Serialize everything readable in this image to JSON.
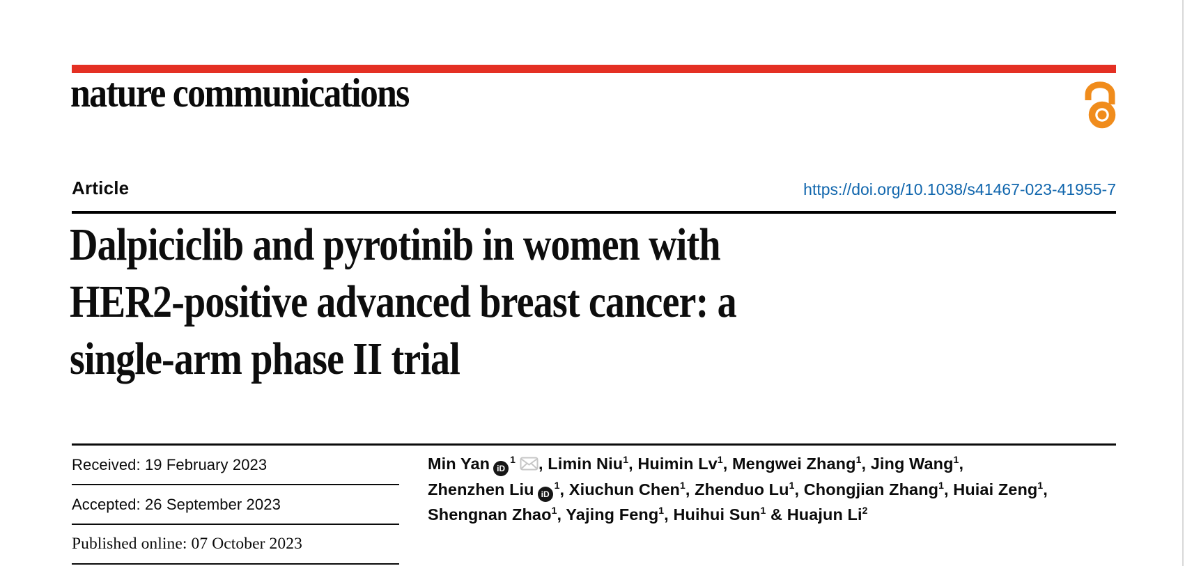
{
  "brand": {
    "journal": "nature communications",
    "colors": {
      "accent_red": "#e43023",
      "link_blue": "#1066ad",
      "open_access_orange": "#f08c1c",
      "text": "#0b0b0b"
    }
  },
  "header": {
    "article_label": "Article",
    "doi": "https://doi.org/10.1038/s41467-023-41955-7"
  },
  "title": {
    "full": "Dalpiciclib and pyrotinib in women with HER2-positive advanced breast cancer: a single-arm phase II trial",
    "lines": [
      "Dalpiciclib and pyrotinib in women with",
      "HER2-positive advanced breast cancer: a",
      "single-arm phase II trial"
    ]
  },
  "dates": {
    "rows": [
      {
        "text": "Received: 19 February 2023"
      },
      {
        "text": "Accepted: 26 September 2023"
      },
      {
        "text": "Published online: 07 October 2023"
      }
    ]
  },
  "authors": {
    "list": [
      {
        "name": "Min Yan",
        "orcid": true,
        "sup": "1",
        "email": true,
        "sep": ", "
      },
      {
        "name": "Limin Niu",
        "sup": "1",
        "sep": ", "
      },
      {
        "name": "Huimin Lv",
        "sup": "1",
        "sep": ", "
      },
      {
        "name": "Mengwei Zhang",
        "sup": "1",
        "sep": ", "
      },
      {
        "name": "Jing Wang",
        "sup": "1",
        "sep": ",",
        "break_after": true
      },
      {
        "name": "Zhenzhen Liu",
        "orcid": true,
        "sup": "1",
        "sep": ", "
      },
      {
        "name": "Xiuchun Chen",
        "sup": "1",
        "sep": ", "
      },
      {
        "name": "Zhenduo Lu",
        "sup": "1",
        "sep": ", "
      },
      {
        "name": "Chongjian Zhang",
        "sup": "1",
        "sep": ", "
      },
      {
        "name": "Huiai Zeng",
        "sup": "1",
        "sep": ",",
        "break_after": true
      },
      {
        "name": "Shengnan Zhao",
        "sup": "1",
        "sep": ", "
      },
      {
        "name": "Yajing Feng",
        "sup": "1",
        "sep": ", "
      },
      {
        "name": "Huihui Sun",
        "sup": "1",
        "sep": " & "
      },
      {
        "name": "Huajun Li",
        "sup": "2",
        "sep": ""
      }
    ]
  },
  "icons": {
    "orcid_label": "iD"
  }
}
